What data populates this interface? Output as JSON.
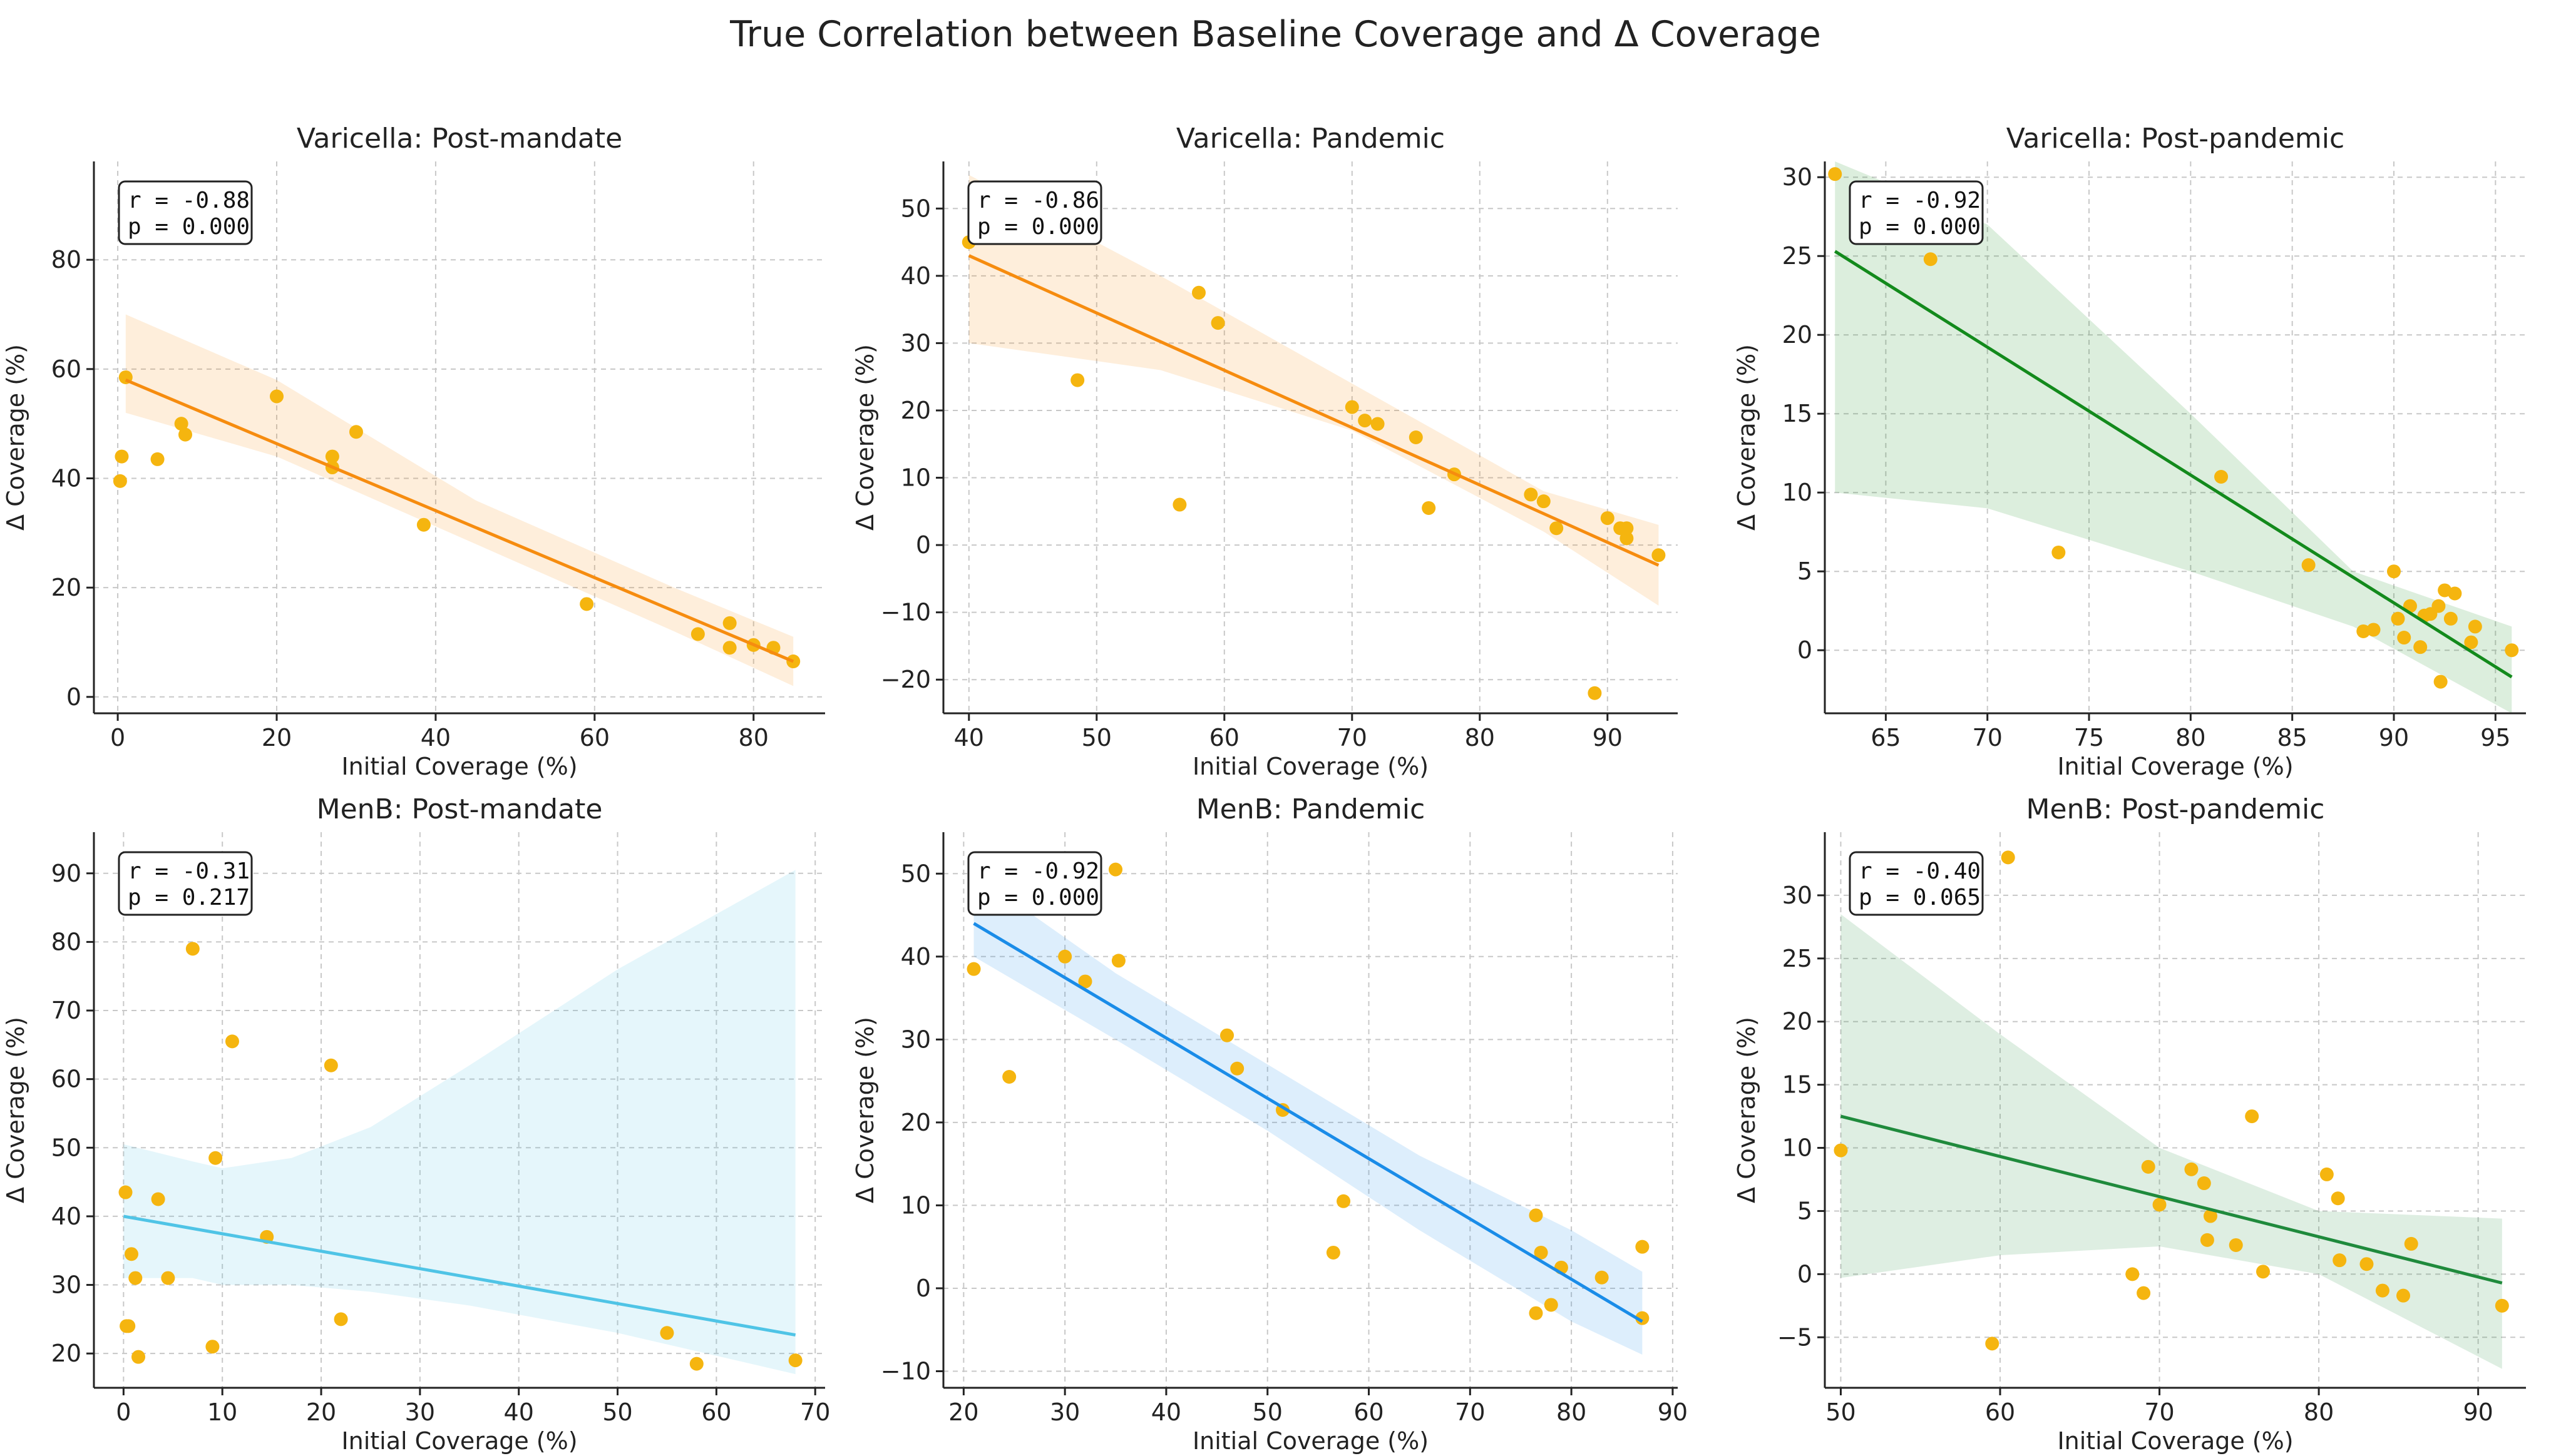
{
  "figure": {
    "title": "True Correlation between Baseline Coverage and Δ Coverage"
  },
  "colors": {
    "point": "#f5b50f",
    "orange": "#f68c0f",
    "green": "#138a1c",
    "sky": "#4fc4e6",
    "blue": "#1a8ce8",
    "green2": "#1f8a3c"
  },
  "chart_data": [
    {
      "type": "scatter",
      "title": "Varicella: Post-mandate",
      "xlabel": "Initial Coverage (%)",
      "ylabel": "Δ Coverage (%)",
      "xlim": [
        -3,
        89
      ],
      "ylim": [
        -3,
        98
      ],
      "xticks": [
        0,
        20,
        40,
        60,
        80
      ],
      "yticks": [
        0,
        20,
        40,
        60,
        80
      ],
      "stats": {
        "r": "r = -0.88",
        "p": "p = 0.000"
      },
      "fit": {
        "x": [
          1,
          85
        ],
        "y": [
          58,
          6.5
        ],
        "color": "orange"
      },
      "band": {
        "x": [
          1,
          20,
          45,
          70,
          85
        ],
        "upper": [
          70,
          58,
          36,
          20,
          11
        ],
        "lower": [
          52,
          44,
          28,
          12,
          2
        ]
      },
      "points": [
        [
          1,
          58.5
        ],
        [
          0.5,
          44
        ],
        [
          0.3,
          39.5
        ],
        [
          5,
          43.5
        ],
        [
          8,
          50
        ],
        [
          8.5,
          48
        ],
        [
          20,
          55
        ],
        [
          27,
          44
        ],
        [
          27,
          42
        ],
        [
          30,
          48.5
        ],
        [
          38.5,
          31.5
        ],
        [
          59,
          17
        ],
        [
          73,
          11.5
        ],
        [
          77,
          13.5
        ],
        [
          77,
          9
        ],
        [
          80,
          9.5
        ],
        [
          82.5,
          9
        ],
        [
          85,
          6.5
        ]
      ]
    },
    {
      "type": "scatter",
      "title": "Varicella: Pandemic",
      "xlabel": "Initial Coverage (%)",
      "ylabel": "Δ Coverage (%)",
      "xlim": [
        38,
        95.5
      ],
      "ylim": [
        -25,
        57
      ],
      "xticks": [
        40,
        50,
        60,
        70,
        80,
        90
      ],
      "yticks": [
        -20,
        -10,
        0,
        10,
        20,
        30,
        40,
        50
      ],
      "stats": {
        "r": "r = -0.86",
        "p": "p = 0.000"
      },
      "fit": {
        "x": [
          40,
          94
        ],
        "y": [
          43,
          -3
        ],
        "color": "orange"
      },
      "band": {
        "x": [
          40,
          55,
          70,
          85,
          94
        ],
        "upper": [
          55,
          40,
          24,
          8,
          3
        ],
        "lower": [
          30,
          26,
          17,
          2,
          -9
        ]
      },
      "points": [
        [
          40,
          45
        ],
        [
          48.5,
          24.5
        ],
        [
          56.5,
          6
        ],
        [
          58,
          37.5
        ],
        [
          59.5,
          33
        ],
        [
          70,
          20.5
        ],
        [
          71,
          18.5
        ],
        [
          72,
          18
        ],
        [
          75,
          16
        ],
        [
          76,
          5.5
        ],
        [
          78,
          10.5
        ],
        [
          84,
          7.5
        ],
        [
          85,
          6.5
        ],
        [
          86,
          2.5
        ],
        [
          89,
          -22
        ],
        [
          90,
          4
        ],
        [
          91,
          2.5
        ],
        [
          91.5,
          1
        ],
        [
          91.5,
          2.5
        ],
        [
          94,
          -1.5
        ]
      ]
    },
    {
      "type": "scatter",
      "title": "Varicella: Post-pandemic",
      "xlabel": "Initial Coverage (%)",
      "ylabel": "Δ Coverage (%)",
      "xlim": [
        62,
        96.5
      ],
      "ylim": [
        -4,
        31
      ],
      "xticks": [
        65,
        70,
        75,
        80,
        85,
        90,
        95
      ],
      "yticks": [
        0,
        5,
        10,
        15,
        20,
        25,
        30
      ],
      "stats": {
        "r": "r = -0.92",
        "p": "p = 0.000"
      },
      "fit": {
        "x": [
          62.5,
          95.8
        ],
        "y": [
          25.3,
          -1.7
        ],
        "color": "green"
      },
      "band": {
        "x": [
          62.5,
          70,
          80,
          88,
          95.8
        ],
        "upper": [
          31,
          27,
          15,
          5,
          1.5
        ],
        "lower": [
          10,
          9,
          5,
          1.5,
          -4
        ]
      },
      "points": [
        [
          62.5,
          30.2
        ],
        [
          67.2,
          24.8
        ],
        [
          73.5,
          6.2
        ],
        [
          81.5,
          11
        ],
        [
          85.8,
          5.4
        ],
        [
          88.5,
          1.2
        ],
        [
          89,
          1.3
        ],
        [
          90,
          5
        ],
        [
          90.2,
          2
        ],
        [
          90.5,
          0.8
        ],
        [
          90.8,
          2.8
        ],
        [
          91.3,
          0.2
        ],
        [
          91.5,
          2.2
        ],
        [
          91.8,
          2.3
        ],
        [
          92.2,
          2.8
        ],
        [
          92.3,
          -2
        ],
        [
          92.5,
          3.8
        ],
        [
          92.8,
          2
        ],
        [
          93,
          3.6
        ],
        [
          93.8,
          0.5
        ],
        [
          94,
          1.5
        ],
        [
          95.8,
          0
        ]
      ]
    },
    {
      "type": "scatter",
      "title": "MenB: Post-mandate",
      "xlabel": "Initial Coverage (%)",
      "ylabel": "Δ Coverage (%)",
      "xlim": [
        -3,
        71
      ],
      "ylim": [
        15,
        96
      ],
      "xticks": [
        0,
        10,
        20,
        30,
        40,
        50,
        60,
        70
      ],
      "yticks": [
        20,
        30,
        40,
        50,
        60,
        70,
        80,
        90
      ],
      "stats": {
        "r": "r = -0.31",
        "p": "p = 0.217"
      },
      "fit": {
        "x": [
          0,
          68
        ],
        "y": [
          40,
          22.7
        ],
        "color": "sky"
      },
      "band": {
        "x": [
          0,
          7,
          10,
          17,
          25,
          35,
          50,
          68
        ],
        "upper": [
          50.5,
          48,
          47,
          48.5,
          53,
          62,
          76,
          90.5
        ],
        "lower": [
          31,
          31,
          30,
          30,
          29,
          27,
          23,
          17
        ]
      },
      "points": [
        [
          0.2,
          43.5
        ],
        [
          0.3,
          24
        ],
        [
          0.5,
          24
        ],
        [
          0.8,
          34.5
        ],
        [
          1.2,
          31
        ],
        [
          1.5,
          19.5
        ],
        [
          3.5,
          42.5
        ],
        [
          4.5,
          31
        ],
        [
          7,
          79
        ],
        [
          9,
          21
        ],
        [
          9.3,
          48.5
        ],
        [
          11,
          65.5
        ],
        [
          14.5,
          37
        ],
        [
          21,
          62
        ],
        [
          22,
          25
        ],
        [
          55,
          23
        ],
        [
          58,
          18.5
        ],
        [
          68,
          19
        ]
      ]
    },
    {
      "type": "scatter",
      "title": "MenB: Pandemic",
      "xlabel": "Initial Coverage (%)",
      "ylabel": "Δ Coverage (%)",
      "xlim": [
        18,
        90.5
      ],
      "ylim": [
        -12,
        55
      ],
      "xticks": [
        20,
        30,
        40,
        50,
        60,
        70,
        80,
        90
      ],
      "yticks": [
        -10,
        0,
        10,
        20,
        30,
        40,
        50
      ],
      "stats": {
        "r": "r = -0.92",
        "p": "p = 0.000"
      },
      "fit": {
        "x": [
          21,
          87
        ],
        "y": [
          44,
          -4
        ],
        "color": "blue"
      },
      "band": {
        "x": [
          21,
          35,
          50,
          65,
          80,
          87
        ],
        "upper": [
          50,
          38,
          27,
          16,
          7,
          2
        ],
        "lower": [
          40,
          30,
          19,
          7,
          -4,
          -8
        ]
      },
      "points": [
        [
          21,
          38.5
        ],
        [
          24.5,
          25.5
        ],
        [
          30,
          40
        ],
        [
          32,
          37
        ],
        [
          35,
          50.5
        ],
        [
          35.3,
          39.5
        ],
        [
          46,
          30.5
        ],
        [
          47,
          26.5
        ],
        [
          51.5,
          21.5
        ],
        [
          56.5,
          4.3
        ],
        [
          57.5,
          10.5
        ],
        [
          76.5,
          8.8
        ],
        [
          76.5,
          -3
        ],
        [
          77,
          4.3
        ],
        [
          78,
          -2
        ],
        [
          79,
          2.5
        ],
        [
          83,
          1.3
        ],
        [
          87,
          5
        ],
        [
          87,
          -3.6
        ]
      ]
    },
    {
      "type": "scatter",
      "title": "MenB: Post-pandemic",
      "xlabel": "Initial Coverage (%)",
      "ylabel": "Δ Coverage (%)",
      "xlim": [
        49,
        93
      ],
      "ylim": [
        -9,
        35
      ],
      "xticks": [
        50,
        60,
        70,
        80,
        90
      ],
      "yticks": [
        -5,
        0,
        5,
        10,
        15,
        20,
        25,
        30
      ],
      "stats": {
        "r": "r = -0.40",
        "p": "p = 0.065"
      },
      "fit": {
        "x": [
          50,
          91.5
        ],
        "y": [
          12.5,
          -0.7
        ],
        "color": "green2"
      },
      "band": {
        "x": [
          50,
          60,
          70,
          80,
          91.5
        ],
        "upper": [
          28.5,
          19,
          10,
          5,
          4.4
        ],
        "lower": [
          -0.3,
          1.5,
          2.2,
          0,
          -7.5
        ]
      },
      "points": [
        [
          50,
          9.8
        ],
        [
          59.5,
          -5.5
        ],
        [
          60.5,
          33
        ],
        [
          68.3,
          0
        ],
        [
          69,
          -1.5
        ],
        [
          69.3,
          8.5
        ],
        [
          70,
          5.5
        ],
        [
          72,
          8.3
        ],
        [
          72.8,
          7.2
        ],
        [
          73,
          2.7
        ],
        [
          73.2,
          4.6
        ],
        [
          74.8,
          2.3
        ],
        [
          75.8,
          12.5
        ],
        [
          76.5,
          0.2
        ],
        [
          80.5,
          7.9
        ],
        [
          81.2,
          6
        ],
        [
          81.3,
          1.1
        ],
        [
          83,
          0.8
        ],
        [
          84,
          -1.3
        ],
        [
          85.3,
          -1.7
        ],
        [
          85.8,
          2.4
        ],
        [
          91.5,
          -2.5
        ]
      ]
    }
  ]
}
